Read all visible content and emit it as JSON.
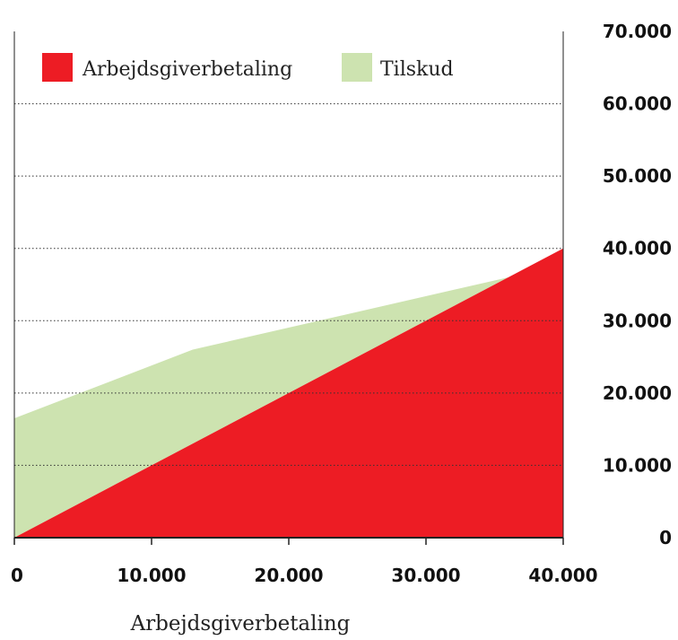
{
  "chart_data": {
    "type": "area",
    "title": "",
    "xlabel": "Arbejdsgiverbetaling",
    "ylabel": "",
    "xlim": [
      0,
      40000
    ],
    "ylim": [
      0,
      70000
    ],
    "x_ticks": [
      0,
      10000,
      20000,
      30000,
      40000
    ],
    "x_tick_labels": [
      "0",
      "10.000",
      "20.000",
      "30.000",
      "40.000"
    ],
    "y_ticks": [
      0,
      10000,
      20000,
      30000,
      40000,
      50000,
      60000,
      70000
    ],
    "y_tick_labels": [
      "0",
      "10.000",
      "20.000",
      "30.000",
      "40.000",
      "50.000",
      "60.000",
      "70.000"
    ],
    "y_axis_position": "right",
    "grid": "horizontal-dotted",
    "legend_position": "top-left",
    "series": [
      {
        "name": "Arbejdsgiverbetaling",
        "color": "#ed1c24",
        "x": [
          0,
          40000
        ],
        "y": [
          0,
          40000
        ]
      },
      {
        "name": "Tilskud",
        "color": "#cde3b0",
        "x": [
          0,
          13000,
          36000
        ],
        "y": [
          16500,
          26000,
          36000
        ]
      }
    ]
  }
}
